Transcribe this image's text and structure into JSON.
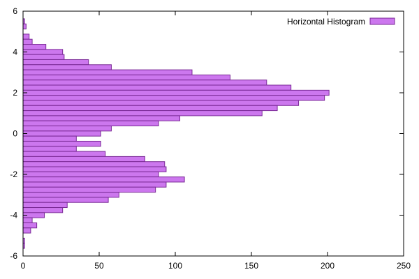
{
  "chart_data": {
    "type": "bar",
    "orientation": "horizontal",
    "title": "",
    "xlabel": "",
    "ylabel": "",
    "legend": {
      "label": "Horizontal Histogram",
      "placement": "top-right"
    },
    "colors": {
      "fill": "#cc77ee",
      "stroke": "#7a2a96"
    },
    "xlim": [
      0,
      250
    ],
    "ylim": [
      -6,
      6
    ],
    "grid": false,
    "x_ticks": [
      {
        "value": 0,
        "label": "0"
      },
      {
        "value": 50,
        "label": "50"
      },
      {
        "value": 100,
        "label": "100"
      },
      {
        "value": 150,
        "label": "150"
      },
      {
        "value": 200,
        "label": "200"
      },
      {
        "value": 250,
        "label": "250"
      }
    ],
    "y_ticks": [
      {
        "value": -6,
        "label": "-6"
      },
      {
        "value": -4,
        "label": "-4"
      },
      {
        "value": -2,
        "label": "-2"
      },
      {
        "value": 0,
        "label": "0"
      },
      {
        "value": 2,
        "label": "2"
      },
      {
        "value": 4,
        "label": "4"
      },
      {
        "value": 6,
        "label": "6"
      }
    ],
    "bin_width": 0.25,
    "bins": [
      {
        "y": 5.5,
        "count": 1
      },
      {
        "y": 5.25,
        "count": 2
      },
      {
        "y": 4.75,
        "count": 4
      },
      {
        "y": 4.5,
        "count": 6
      },
      {
        "y": 4.25,
        "count": 15
      },
      {
        "y": 4.0,
        "count": 26
      },
      {
        "y": 3.75,
        "count": 27
      },
      {
        "y": 3.5,
        "count": 43
      },
      {
        "y": 3.25,
        "count": 58
      },
      {
        "y": 3.0,
        "count": 111
      },
      {
        "y": 2.75,
        "count": 136
      },
      {
        "y": 2.5,
        "count": 160
      },
      {
        "y": 2.25,
        "count": 176
      },
      {
        "y": 2.0,
        "count": 201
      },
      {
        "y": 1.75,
        "count": 198
      },
      {
        "y": 1.5,
        "count": 181
      },
      {
        "y": 1.25,
        "count": 167
      },
      {
        "y": 1.0,
        "count": 157
      },
      {
        "y": 0.75,
        "count": 103
      },
      {
        "y": 0.5,
        "count": 89
      },
      {
        "y": 0.25,
        "count": 58
      },
      {
        "y": 0.0,
        "count": 51
      },
      {
        "y": -0.25,
        "count": 35
      },
      {
        "y": -0.5,
        "count": 51
      },
      {
        "y": -0.75,
        "count": 35
      },
      {
        "y": -1.0,
        "count": 54
      },
      {
        "y": -1.25,
        "count": 80
      },
      {
        "y": -1.5,
        "count": 93
      },
      {
        "y": -1.75,
        "count": 94
      },
      {
        "y": -2.0,
        "count": 89
      },
      {
        "y": -2.25,
        "count": 106
      },
      {
        "y": -2.5,
        "count": 94
      },
      {
        "y": -2.75,
        "count": 87
      },
      {
        "y": -3.0,
        "count": 63
      },
      {
        "y": -3.25,
        "count": 56
      },
      {
        "y": -3.5,
        "count": 29
      },
      {
        "y": -3.75,
        "count": 26
      },
      {
        "y": -4.0,
        "count": 14
      },
      {
        "y": -4.25,
        "count": 6
      },
      {
        "y": -4.5,
        "count": 9
      },
      {
        "y": -4.75,
        "count": 5
      },
      {
        "y": -5.25,
        "count": 1
      },
      {
        "y": -5.5,
        "count": 1
      }
    ]
  }
}
